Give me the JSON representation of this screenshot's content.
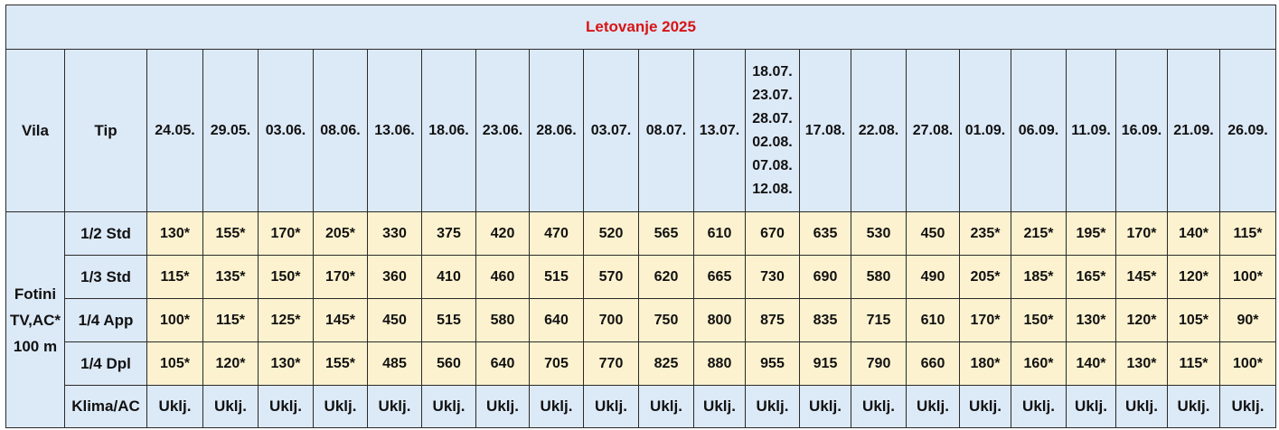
{
  "title": "Letovanje 2025",
  "headers": {
    "vila": "Vila",
    "tip": "Tip",
    "periods": [
      [
        "24.05."
      ],
      [
        "29.05."
      ],
      [
        "03.06."
      ],
      [
        "08.06."
      ],
      [
        "13.06."
      ],
      [
        "18.06."
      ],
      [
        "23.06."
      ],
      [
        "28.06."
      ],
      [
        "03.07."
      ],
      [
        "08.07."
      ],
      [
        "13.07."
      ],
      [
        "18.07.",
        "23.07.",
        "28.07.",
        "02.08.",
        "07.08.",
        "12.08."
      ],
      [
        "17.08."
      ],
      [
        "22.08."
      ],
      [
        "27.08."
      ],
      [
        "01.09."
      ],
      [
        "06.09."
      ],
      [
        "11.09."
      ],
      [
        "16.09."
      ],
      [
        "21.09."
      ],
      [
        "26.09."
      ]
    ]
  },
  "villa": {
    "name": "Fotini",
    "amenities": "TV,AC*",
    "distance": "100 m"
  },
  "rows": [
    {
      "tip": "1/2  Std",
      "prices": [
        "130*",
        "155*",
        "170*",
        "205*",
        "330",
        "375",
        "420",
        "470",
        "520",
        "565",
        "610",
        "670",
        "635",
        "530",
        "450",
        "235*",
        "215*",
        "195*",
        "170*",
        "140*",
        "115*"
      ]
    },
    {
      "tip": "1/3 Std",
      "prices": [
        "115*",
        "135*",
        "150*",
        "170*",
        "360",
        "410",
        "460",
        "515",
        "570",
        "620",
        "665",
        "730",
        "690",
        "580",
        "490",
        "205*",
        "185*",
        "165*",
        "145*",
        "120*",
        "100*"
      ]
    },
    {
      "tip": "1/4 App",
      "prices": [
        "100*",
        "115*",
        "125*",
        "145*",
        "450",
        "515",
        "580",
        "640",
        "700",
        "750",
        "800",
        "875",
        "835",
        "715",
        "610",
        "170*",
        "150*",
        "130*",
        "120*",
        "105*",
        "90*"
      ]
    },
    {
      "tip": "1/4 Dpl",
      "prices": [
        "105*",
        "120*",
        "130*",
        "155*",
        "485",
        "560",
        "640",
        "705",
        "770",
        "825",
        "880",
        "955",
        "915",
        "790",
        "660",
        "180*",
        "160*",
        "140*",
        "130*",
        "115*",
        "100*"
      ]
    }
  ],
  "klima": {
    "label": "Klima/AC",
    "values": [
      "Uklj.",
      "Uklj.",
      "Uklj.",
      "Uklj.",
      "Uklj.",
      "Uklj.",
      "Uklj.",
      "Uklj.",
      "Uklj.",
      "Uklj.",
      "Uklj.",
      "Uklj.",
      "Uklj.",
      "Uklj.",
      "Uklj.",
      "Uklj.",
      "Uklj.",
      "Uklj.",
      "Uklj.",
      "Uklj.",
      "Uklj."
    ]
  },
  "colors": {
    "header_bg": "#dce9f7",
    "price_bg": "#fdf2cf",
    "title_text": "#d81414",
    "border": "#2a2a2a"
  }
}
